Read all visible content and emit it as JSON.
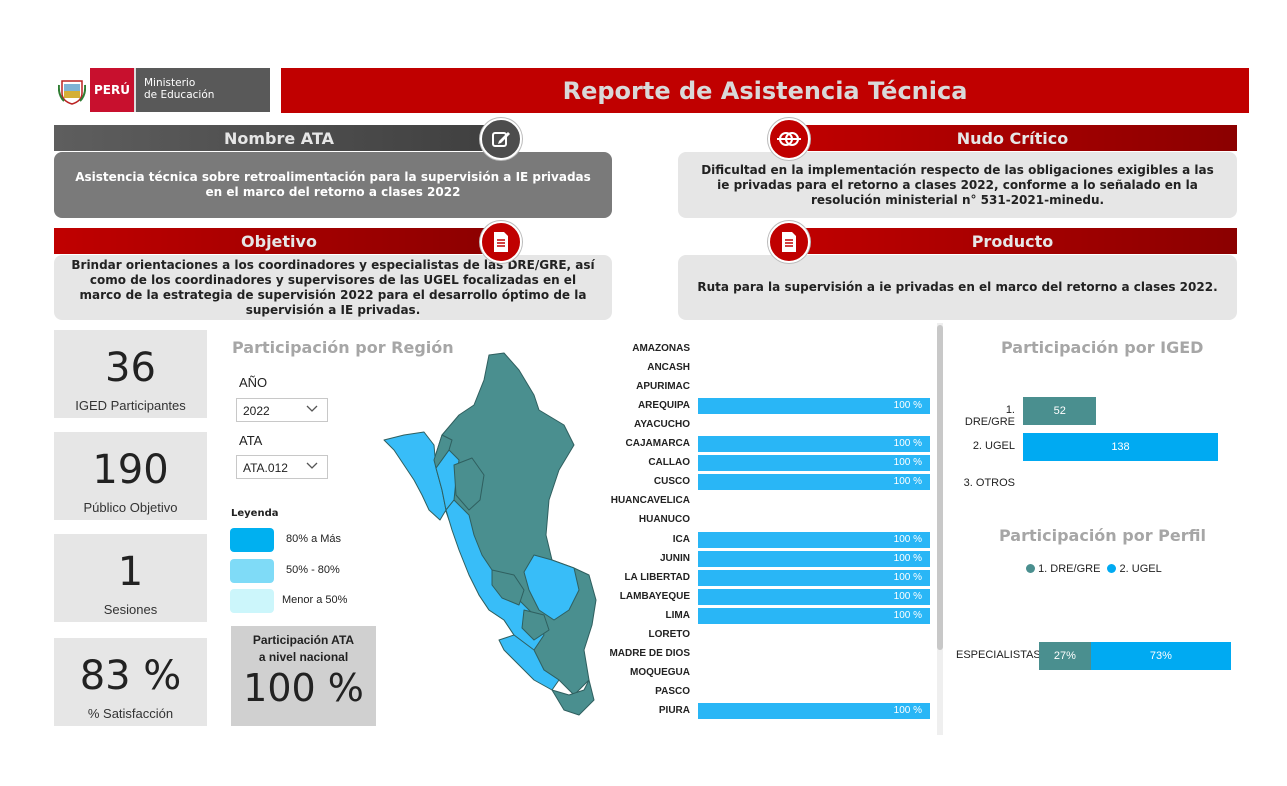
{
  "header": {
    "country": "PERÚ",
    "ministry_line1": "Ministerio",
    "ministry_line2": "de Educación",
    "title": "Reporte de Asistencia Técnica"
  },
  "sections": {
    "nombre_ata": {
      "title": "Nombre ATA",
      "text": "Asistencia técnica sobre retroalimentación para la supervisión a IE privadas en el marco del retorno a clases 2022"
    },
    "nudo_critico": {
      "title": "Nudo Crítico",
      "text": "Dificultad en la implementación respecto de las obligaciones exigibles a las ie privadas para el retorno a clases 2022, conforme a lo señalado en la resolución ministerial n° 531-2021-minedu."
    },
    "objetivo": {
      "title": "Objetivo",
      "text": "Brindar orientaciones a los coordinadores y especialistas de las DRE/GRE, así como de los coordinadores y supervisores de las UGEL focalizadas en el marco de la estrategia de supervisión 2022 para el desarrollo óptimo de la supervisión a IE privadas."
    },
    "producto": {
      "title": "Producto",
      "text": "Ruta para la supervisión a ie privadas en el marco del retorno a clases 2022."
    }
  },
  "kpis": [
    {
      "value": "36",
      "label": "IGED Participantes"
    },
    {
      "value": "190",
      "label": "Público Objetivo"
    },
    {
      "value": "1",
      "label": "Sesiones"
    },
    {
      "value": "83 %",
      "label": "% Satisfacción"
    }
  ],
  "region_panel": {
    "title": "Participación por Región",
    "filters": {
      "year_label": "AÑO",
      "year_value": "2022",
      "ata_label": "ATA",
      "ata_value": "ATA.012"
    },
    "legend": {
      "title": "Leyenda",
      "items": [
        {
          "label": "80% a Más",
          "color": "#00b0f0"
        },
        {
          "label": "50% - 80%",
          "color": "#7fdbf7"
        },
        {
          "label": "Menor a 50%",
          "color": "#ccf6fb"
        }
      ]
    },
    "national": {
      "label_line1": "Participación ATA",
      "label_line2": "a nivel nacional",
      "value": "100 %"
    }
  },
  "chart_data": [
    {
      "type": "bar",
      "orientation": "horizontal",
      "categories": [
        "AMAZONAS",
        "ANCASH",
        "APURIMAC",
        "AREQUIPA",
        "AYACUCHO",
        "CAJAMARCA",
        "CALLAO",
        "CUSCO",
        "HUANCAVELICA",
        "HUANUCO",
        "ICA",
        "JUNIN",
        "LA LIBERTAD",
        "LAMBAYEQUE",
        "LIMA",
        "LORETO",
        "MADRE DE DIOS",
        "MOQUEGUA",
        "PASCO",
        "PIURA"
      ],
      "values": [
        null,
        null,
        null,
        100,
        null,
        100,
        100,
        100,
        null,
        null,
        100,
        100,
        100,
        100,
        100,
        null,
        null,
        null,
        null,
        100
      ],
      "data_labels": [
        "",
        "",
        "",
        "100 %",
        "",
        "100 %",
        "100 %",
        "100 %",
        "",
        "",
        "100 %",
        "100 %",
        "100 %",
        "100 %",
        "100 %",
        "",
        "",
        "",
        "",
        "100 %"
      ],
      "color": "#29b6f6"
    },
    {
      "type": "bar",
      "orientation": "horizontal",
      "title": "Participación por IGED",
      "categories": [
        "1. DRE/GRE",
        "2. UGEL",
        "3. OTROS"
      ],
      "values": [
        52,
        138,
        null
      ],
      "colors": [
        "#4a8f8f",
        "#00aaf2",
        "#00aaf2"
      ]
    },
    {
      "type": "bar",
      "orientation": "horizontal",
      "stacked": true,
      "title": "Participación por Perfil",
      "categories": [
        "ESPECIALISTAS"
      ],
      "series": [
        {
          "name": "1. DRE/GRE",
          "values": [
            27
          ],
          "label": "27%",
          "color": "#4a8f8f"
        },
        {
          "name": "2. UGEL",
          "values": [
            73
          ],
          "label": "73%",
          "color": "#00aaf2"
        }
      ]
    }
  ],
  "map_colors": {
    "teal": "#4a8f8f",
    "blue": "#38bdf8",
    "border": "#2f5f5f"
  },
  "title_color": "#c00000"
}
